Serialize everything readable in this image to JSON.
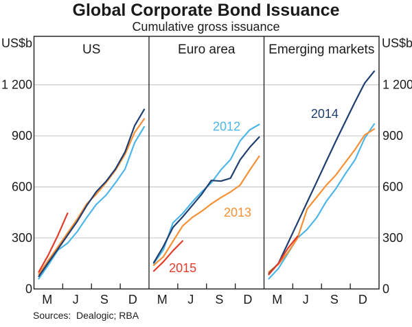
{
  "title": "Global Corporate Bond Issuance",
  "subtitle": "Cumulative gross issuance",
  "source": "Sources:  Dealogic; RBA",
  "axis": {
    "unit_label": "US$b",
    "ylim": [
      0,
      1485
    ],
    "ytick_values": [
      0,
      300,
      600,
      900,
      1200
    ],
    "ytick_labels": [
      "0",
      "300",
      "600",
      "900",
      "1 200"
    ],
    "xtick_month_labels": [
      "M",
      "J",
      "S",
      "D"
    ],
    "grid": true,
    "legend_position": "inline-annotations"
  },
  "colors": {
    "y2012": "#4db6e8",
    "y2013": "#f78f33",
    "y2014": "#1f3d6f",
    "y2015": "#e23b28",
    "grid": "#c9cacb",
    "frame": "#1a1a1a",
    "text": "#1a1a1a"
  },
  "chart_data": {
    "type": "line",
    "title": "Global Corporate Bond Issuance",
    "subtitle": "Cumulative gross issuance",
    "x_months": [
      "Jan",
      "Feb",
      "Mar",
      "Apr",
      "May",
      "Jun",
      "Jul",
      "Aug",
      "Sep",
      "Oct",
      "Nov",
      "Dec"
    ],
    "xlabel": "",
    "ylabel": "US$b",
    "ylim": [
      0,
      1485
    ],
    "panels": [
      {
        "title": "US",
        "series": [
          {
            "name": "2012",
            "color_key": "y2012",
            "values": [
              60,
              141,
              228,
              269,
              336,
              420,
              497,
              550,
              624,
              705,
              860,
              953
            ]
          },
          {
            "name": "2013",
            "color_key": "y2013",
            "values": [
              87,
              168,
              248,
              329,
              409,
              500,
              557,
              624,
              698,
              792,
              920,
              1000
            ]
          },
          {
            "name": "2014",
            "color_key": "y2014",
            "values": [
              74,
              155,
              235,
              316,
              396,
              490,
              571,
              631,
              705,
              805,
              960,
              1055
            ]
          },
          {
            "name": "2015",
            "color_key": "y2015",
            "values": [
              100,
              200,
              316,
              445
            ]
          }
        ],
        "annotations": []
      },
      {
        "title": "Euro area",
        "series": [
          {
            "name": "2012",
            "color_key": "y2012",
            "values": [
              150,
              230,
              389,
              443,
              510,
              571,
              624,
              700,
              760,
              870,
              935,
              967
            ]
          },
          {
            "name": "2013",
            "color_key": "y2013",
            "values": [
              140,
              190,
              280,
              370,
              420,
              457,
              500,
              537,
              570,
              610,
              698,
              780
            ]
          },
          {
            "name": "2014",
            "color_key": "y2014",
            "values": [
              155,
              250,
              362,
              423,
              490,
              557,
              638,
              634,
              651,
              759,
              832,
              893
            ]
          },
          {
            "name": "2015",
            "color_key": "y2015",
            "values": [
              105,
              160,
              225,
              282
            ]
          }
        ],
        "annotations": [
          {
            "text": "2012",
            "color_key": "y2012",
            "month": 8.6,
            "value": 956
          },
          {
            "text": "2013",
            "color_key": "y2013",
            "month": 9.74,
            "value": 449
          },
          {
            "text": "2015",
            "color_key": "y2015",
            "month": 4.02,
            "value": 123
          }
        ]
      },
      {
        "title": "Emerging markets",
        "series": [
          {
            "name": "2012",
            "color_key": "y2012",
            "values": [
              60,
              120,
              210,
              300,
              350,
              420,
              515,
              590,
              678,
              760,
              886,
              970
            ]
          },
          {
            "name": "2013",
            "color_key": "y2013",
            "values": [
              100,
              145,
              215,
              300,
              470,
              540,
              610,
              670,
              745,
              820,
              905,
              940
            ]
          },
          {
            "name": "2014",
            "color_key": "y2014",
            "values": [
              90,
              150,
              270,
              390,
              510,
              630,
              750,
              870,
              985,
              1100,
              1210,
              1280
            ]
          },
          {
            "name": "2015",
            "color_key": "y2015",
            "values": [
              85,
              150,
              240,
              310
            ]
          }
        ],
        "annotations": [
          {
            "text": "2014",
            "color_key": "y2014",
            "month": 6.83,
            "value": 1029
          }
        ]
      }
    ]
  }
}
